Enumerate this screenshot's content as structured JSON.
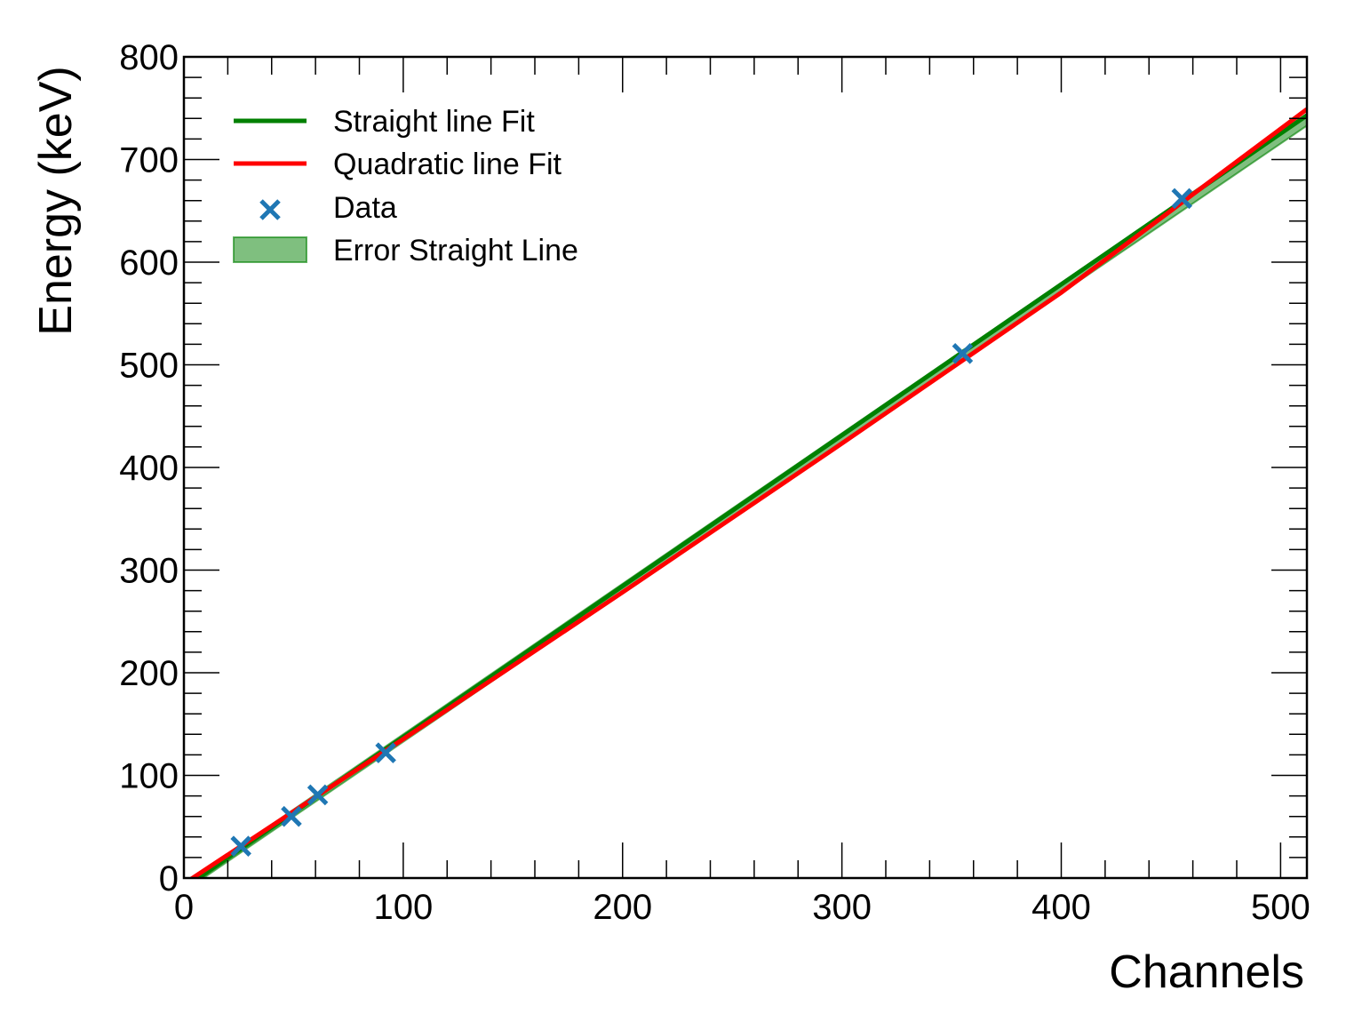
{
  "chart_data": {
    "type": "line",
    "title": "",
    "xlabel": "Channels",
    "ylabel": "Energy (keV)",
    "xlim": [
      0,
      512
    ],
    "ylim": [
      0,
      800
    ],
    "x_ticks": [
      0,
      100,
      200,
      300,
      400,
      500
    ],
    "y_ticks": [
      0,
      100,
      200,
      300,
      400,
      500,
      600,
      700,
      800
    ],
    "grid": false,
    "legend_position": "top-left",
    "series": [
      {
        "name": "Straight line Fit",
        "kind": "line",
        "color": "#008000",
        "x": [
          0,
          512
        ],
        "y": [
          -9.6,
          743.0
        ]
      },
      {
        "name": "Quadratic line Fit",
        "kind": "line",
        "color": "#ff0000",
        "x": [
          0,
          100,
          200,
          300,
          400,
          512
        ],
        "y": [
          -5.6,
          135.4,
          278.4,
          423.4,
          570.4,
          749.0
        ]
      },
      {
        "name": "Data",
        "kind": "scatter",
        "marker": "x",
        "color": "#1f77b4",
        "x": [
          26,
          49,
          61,
          92,
          355,
          455
        ],
        "y": [
          31,
          60,
          81,
          122,
          511,
          662
        ]
      },
      {
        "name": "Error Straight Line",
        "kind": "band",
        "color": "#008000",
        "opacity": 0.5,
        "x": [
          0,
          512
        ],
        "y_lower": [
          -13.0,
          733.0
        ],
        "y_upper": [
          -6.5,
          744.0
        ]
      }
    ]
  }
}
